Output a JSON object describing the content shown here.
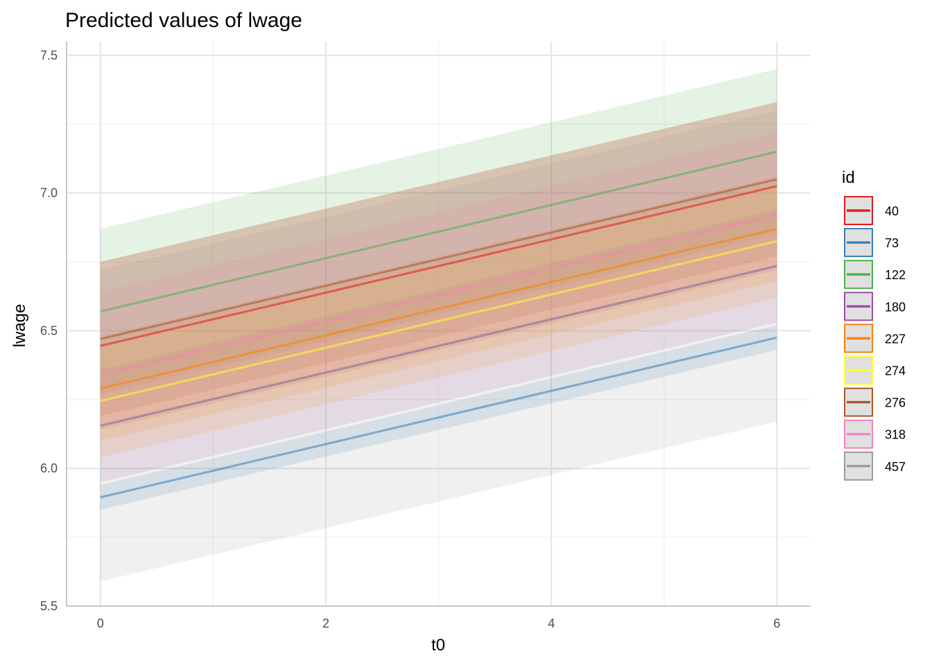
{
  "chart_data": {
    "type": "line",
    "title": "Predicted values of lwage",
    "xlabel": "t0",
    "ylabel": "lwage",
    "xlim": [
      0,
      6
    ],
    "ylim": [
      5.5,
      7.5
    ],
    "x_ticks": [
      0,
      2,
      4,
      6
    ],
    "y_ticks": [
      5.5,
      6.0,
      6.5,
      7.0,
      7.5
    ],
    "x_tick_labels": [
      "0",
      "2",
      "4",
      "6"
    ],
    "y_tick_labels": [
      "5.5",
      "6.0",
      "6.5",
      "7.0",
      "7.5"
    ],
    "grid": true,
    "legend": {
      "title": "id",
      "placement": "right"
    },
    "x": [
      0,
      6
    ],
    "series": [
      {
        "name": "40",
        "color": "#e41a1c",
        "values": [
          6.445,
          7.025
        ],
        "lower": [
          6.14,
          6.72
        ],
        "upper": [
          6.75,
          7.33
        ]
      },
      {
        "name": "73",
        "color": "#377eb8",
        "values": [
          5.895,
          6.475
        ],
        "lower": [
          5.85,
          6.43
        ],
        "upper": [
          5.94,
          6.52
        ]
      },
      {
        "name": "122",
        "color": "#4daf4a",
        "values": [
          6.57,
          7.15
        ],
        "lower": [
          6.27,
          6.85
        ],
        "upper": [
          6.87,
          7.45
        ]
      },
      {
        "name": "180",
        "color": "#984ea3",
        "values": [
          6.155,
          6.735
        ],
        "lower": [
          5.95,
          6.53
        ],
        "upper": [
          6.36,
          6.94
        ]
      },
      {
        "name": "227",
        "color": "#ff7f00",
        "values": [
          6.29,
          6.87
        ],
        "lower": [
          6.1,
          6.68
        ],
        "upper": [
          6.48,
          7.06
        ]
      },
      {
        "name": "274",
        "color": "#ffff33",
        "values": [
          6.245,
          6.825
        ],
        "lower": [
          6.04,
          6.62
        ],
        "upper": [
          6.45,
          7.03
        ]
      },
      {
        "name": "276",
        "color": "#a65628",
        "values": [
          6.47,
          7.05
        ],
        "lower": [
          6.19,
          6.77
        ],
        "upper": [
          6.75,
          7.33
        ]
      },
      {
        "name": "318",
        "color": "#f781bf",
        "values": [
          6.34,
          6.92
        ],
        "lower": [
          6.04,
          6.62
        ],
        "upper": [
          6.64,
          7.22
        ]
      },
      {
        "name": "457",
        "color": "#999999",
        "values": [
          6.155,
          6.735
        ],
        "lower": [
          5.59,
          6.17
        ],
        "upper": [
          6.72,
          7.3
        ]
      }
    ]
  }
}
